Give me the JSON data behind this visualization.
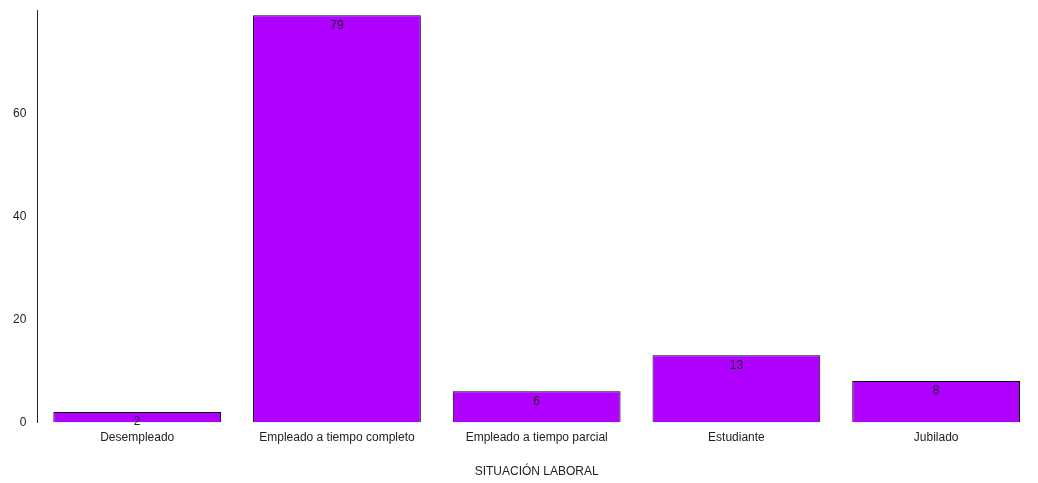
{
  "chart_data": {
    "type": "bar",
    "xlabel": "SITUACIÓN LABORAL",
    "categories": [
      "Desempleado",
      "Empleado a tiempo completo",
      "Empleado a tiempo parcial",
      "Estudiante",
      "Jubilado"
    ],
    "values": [
      2,
      79,
      6,
      13,
      8
    ],
    "color": "#b000ff",
    "ylim": [
      0,
      80
    ],
    "yticks": [
      0,
      20,
      40,
      60
    ],
    "grid": false,
    "legend": false,
    "data_labels": true
  }
}
